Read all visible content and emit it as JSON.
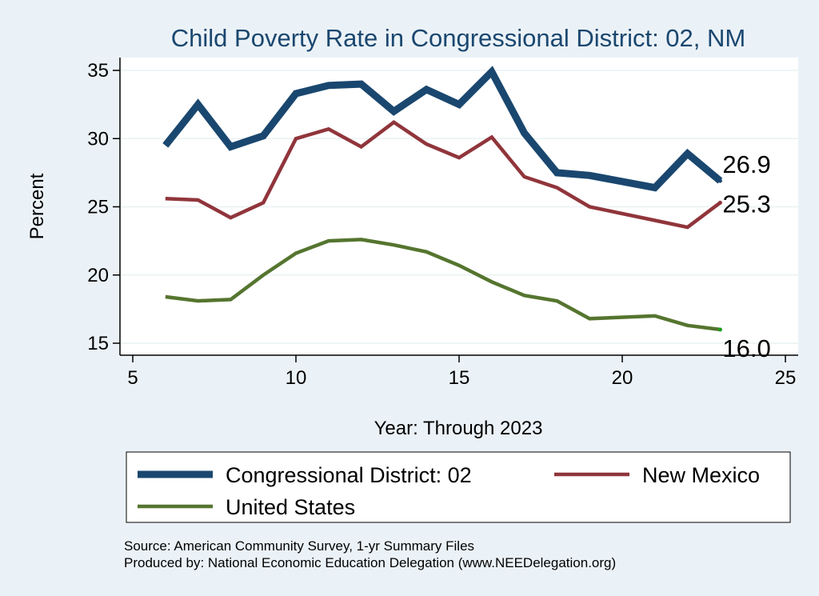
{
  "chart_data": {
    "type": "line",
    "title": "Child Poverty Rate in Congressional District:  02, NM",
    "xlabel": "Year: Through 2023",
    "ylabel": "Percent",
    "xlim": [
      5,
      25
    ],
    "ylim": [
      15,
      35
    ],
    "xticks": [
      5,
      10,
      15,
      20,
      25
    ],
    "yticks": [
      15,
      20,
      25,
      30,
      35
    ],
    "grid": true,
    "legend_position": "bottom",
    "series": [
      {
        "name": "Congressional District:  02",
        "color": "#1a476f",
        "x": [
          6,
          7,
          8,
          9,
          10,
          11,
          12,
          13,
          14,
          15,
          16,
          17,
          18,
          19,
          21,
          22,
          23
        ],
        "y": [
          29.5,
          32.5,
          29.4,
          30.2,
          33.3,
          33.9,
          34.0,
          32.0,
          33.6,
          32.5,
          34.9,
          30.4,
          27.5,
          27.3,
          26.4,
          28.9,
          26.9
        ],
        "end_label": "26.9"
      },
      {
        "name": "New Mexico",
        "color": "#90353b",
        "x": [
          6,
          7,
          8,
          9,
          10,
          11,
          12,
          13,
          14,
          15,
          16,
          17,
          18,
          19,
          21,
          22,
          23
        ],
        "y": [
          25.6,
          25.5,
          24.2,
          25.3,
          30.0,
          30.7,
          29.4,
          31.2,
          29.6,
          28.6,
          30.1,
          27.2,
          26.4,
          25.0,
          24.0,
          23.5,
          25.3
        ],
        "end_label": "25.3"
      },
      {
        "name": "United States",
        "color": "#55752f",
        "x": [
          6,
          7,
          8,
          9,
          10,
          11,
          12,
          13,
          14,
          15,
          16,
          17,
          18,
          19,
          21,
          22,
          23
        ],
        "y": [
          18.4,
          18.1,
          18.2,
          20.0,
          21.6,
          22.5,
          22.6,
          22.2,
          21.7,
          20.7,
          19.5,
          18.5,
          18.1,
          16.8,
          17.0,
          16.3,
          16.0
        ],
        "end_label": "16.0"
      }
    ],
    "notes": [
      "Source: American Community Survey, 1-yr Summary Files",
      "Produced by: National Economic Education Delegation (www.NEEDelegation.org)"
    ]
  }
}
